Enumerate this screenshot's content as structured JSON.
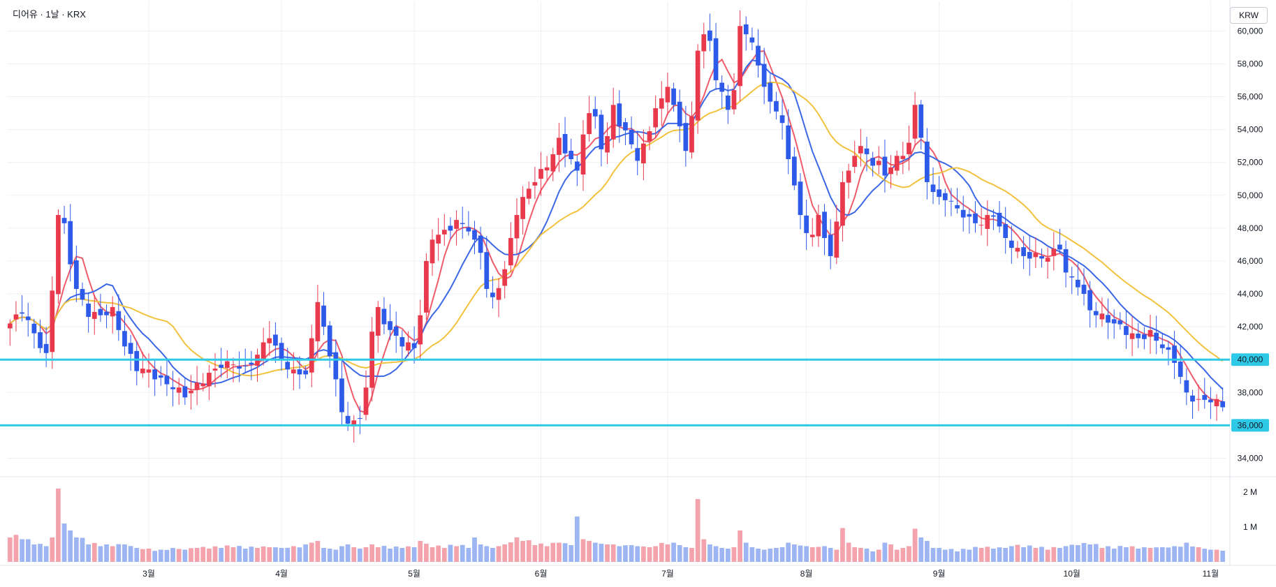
{
  "chart_data": {
    "type": "candlestick",
    "title": "디어유 · 1날 · KRX",
    "currency": "KRW",
    "price_ticks": [
      "34,000",
      "36,000",
      "38,000",
      "40,000",
      "42,000",
      "44,000",
      "46,000",
      "48,000",
      "50,000",
      "52,000",
      "54,000",
      "56,000",
      "58,000",
      "60,000"
    ],
    "price_tick_values": [
      34000,
      36000,
      38000,
      40000,
      42000,
      44000,
      46000,
      48000,
      50000,
      52000,
      54000,
      56000,
      58000,
      60000
    ],
    "ylim": [
      33000,
      61800
    ],
    "volume_ticks": [
      "1 M",
      "2 M"
    ],
    "volume_tick_values": [
      1000000,
      2000000
    ],
    "volume_ylim": [
      0,
      2300000
    ],
    "x_labels": [
      "3월",
      "4월",
      "5월",
      "6월",
      "7월",
      "8월",
      "9월",
      "10월",
      "11월"
    ],
    "x_label_index": [
      23,
      45,
      67,
      88,
      109,
      132,
      154,
      176,
      199
    ],
    "bars_total": 202,
    "horizontal_lines": [
      {
        "value": 40000,
        "label": "40,000",
        "color": "#2fc9e8"
      },
      {
        "value": 36000,
        "label": "36,000",
        "color": "#2fc9e8"
      }
    ],
    "colors": {
      "up": "#e8394d",
      "down": "#2d5ae8",
      "vol_up": "#f4a3ad",
      "vol_down": "#9db5f2",
      "ma_short": "#ef5b6a",
      "ma_mid": "#3c67e6",
      "ma_long": "#f2c23e"
    },
    "anchors": [
      [
        0,
        42200,
        700000
      ],
      [
        2,
        42800,
        650000
      ],
      [
        4,
        41600,
        500000
      ],
      [
        6,
        40400,
        450000
      ],
      [
        7,
        44200,
        700000
      ],
      [
        8,
        48800,
        2100000
      ],
      [
        9,
        48300,
        1100000
      ],
      [
        10,
        45800,
        900000
      ],
      [
        11,
        44300,
        700000
      ],
      [
        13,
        42600,
        500000
      ],
      [
        15,
        42700,
        450000
      ],
      [
        17,
        43200,
        450000
      ],
      [
        19,
        40800,
        500000
      ],
      [
        21,
        39300,
        400000
      ],
      [
        23,
        39400,
        380000
      ],
      [
        25,
        38900,
        350000
      ],
      [
        27,
        38200,
        400000
      ],
      [
        29,
        37700,
        350000
      ],
      [
        31,
        38600,
        400000
      ],
      [
        33,
        39200,
        380000
      ],
      [
        35,
        39500,
        400000
      ],
      [
        37,
        39700,
        420000
      ],
      [
        39,
        39600,
        380000
      ],
      [
        41,
        40300,
        400000
      ],
      [
        43,
        41300,
        420000
      ],
      [
        45,
        40000,
        400000
      ],
      [
        47,
        39400,
        450000
      ],
      [
        49,
        39100,
        500000
      ],
      [
        50,
        41300,
        550000
      ],
      [
        51,
        43500,
        600000
      ],
      [
        52,
        42000,
        400000
      ],
      [
        53,
        40200,
        380000
      ],
      [
        54,
        38800,
        350000
      ],
      [
        55,
        36800,
        450000
      ],
      [
        56,
        36100,
        500000
      ],
      [
        57,
        36300,
        420000
      ],
      [
        58,
        36400,
        380000
      ],
      [
        59,
        38300,
        420000
      ],
      [
        60,
        41700,
        500000
      ],
      [
        61,
        43200,
        420000
      ],
      [
        63,
        41800,
        380000
      ],
      [
        65,
        40800,
        400000
      ],
      [
        67,
        40700,
        420000
      ],
      [
        68,
        42700,
        600000
      ],
      [
        69,
        46000,
        520000
      ],
      [
        70,
        47300,
        420000
      ],
      [
        72,
        47900,
        400000
      ],
      [
        74,
        48500,
        450000
      ],
      [
        76,
        47800,
        400000
      ],
      [
        77,
        47300,
        700000
      ],
      [
        78,
        46500,
        500000
      ],
      [
        79,
        44300,
        450000
      ],
      [
        80,
        43800,
        400000
      ],
      [
        82,
        45500,
        500000
      ],
      [
        84,
        48800,
        700000
      ],
      [
        85,
        49900,
        600000
      ],
      [
        87,
        50800,
        480000
      ],
      [
        89,
        51700,
        450000
      ],
      [
        91,
        53500,
        550000
      ],
      [
        93,
        52200,
        480000
      ],
      [
        94,
        51500,
        1300000
      ],
      [
        95,
        53700,
        650000
      ],
      [
        96,
        55000,
        600000
      ],
      [
        97,
        54800,
        550000
      ],
      [
        98,
        52800,
        520000
      ],
      [
        99,
        53600,
        500000
      ],
      [
        100,
        55500,
        500000
      ],
      [
        101,
        54200,
        450000
      ],
      [
        103,
        53100,
        480000
      ],
      [
        104,
        52100,
        450000
      ],
      [
        106,
        53900,
        420000
      ],
      [
        107,
        55300,
        450000
      ],
      [
        109,
        56600,
        500000
      ],
      [
        110,
        55500,
        550000
      ],
      [
        111,
        54200,
        480000
      ],
      [
        112,
        52700,
        420000
      ],
      [
        113,
        54800,
        400000
      ],
      [
        114,
        58800,
        1800000
      ],
      [
        115,
        59800,
        650000
      ],
      [
        116,
        59400,
        500000
      ],
      [
        117,
        57000,
        450000
      ],
      [
        118,
        56300,
        400000
      ],
      [
        119,
        55200,
        380000
      ],
      [
        120,
        56400,
        420000
      ],
      [
        121,
        60300,
        900000
      ],
      [
        122,
        59800,
        550000
      ],
      [
        123,
        59300,
        420000
      ],
      [
        124,
        57900,
        380000
      ],
      [
        125,
        56600,
        350000
      ],
      [
        126,
        55700,
        380000
      ],
      [
        127,
        55100,
        400000
      ],
      [
        128,
        54400,
        420000
      ],
      [
        129,
        52200,
        550000
      ],
      [
        130,
        50600,
        500000
      ],
      [
        131,
        48800,
        470000
      ],
      [
        132,
        47700,
        450000
      ],
      [
        133,
        47600,
        420000
      ],
      [
        134,
        48800,
        430000
      ],
      [
        135,
        47400,
        450000
      ],
      [
        136,
        46300,
        400000
      ],
      [
        137,
        48400,
        350000
      ],
      [
        138,
        50800,
        970000
      ],
      [
        139,
        51500,
        550000
      ],
      [
        140,
        52400,
        420000
      ],
      [
        141,
        53000,
        400000
      ],
      [
        142,
        52500,
        380000
      ],
      [
        143,
        51800,
        300000
      ],
      [
        144,
        52100,
        350000
      ],
      [
        145,
        51200,
        550000
      ],
      [
        146,
        51700,
        500000
      ],
      [
        147,
        52400,
        350000
      ],
      [
        148,
        52400,
        400000
      ],
      [
        149,
        53200,
        450000
      ],
      [
        150,
        55500,
        950000
      ],
      [
        151,
        53500,
        700000
      ],
      [
        152,
        50800,
        600000
      ],
      [
        153,
        50200,
        400000
      ],
      [
        154,
        49900,
        400000
      ],
      [
        155,
        49700,
        350000
      ],
      [
        157,
        49200,
        300000
      ],
      [
        159,
        48700,
        350000
      ],
      [
        161,
        48200,
        400000
      ],
      [
        163,
        48700,
        380000
      ],
      [
        165,
        47400,
        400000
      ],
      [
        166,
        46800,
        450000
      ],
      [
        168,
        46300,
        420000
      ],
      [
        170,
        46500,
        400000
      ],
      [
        172,
        46200,
        350000
      ],
      [
        174,
        46700,
        400000
      ],
      [
        175,
        45300,
        450000
      ],
      [
        177,
        44400,
        480000
      ],
      [
        179,
        43000,
        500000
      ],
      [
        181,
        42800,
        400000
      ],
      [
        183,
        42200,
        380000
      ],
      [
        185,
        41500,
        420000
      ],
      [
        187,
        41300,
        380000
      ],
      [
        189,
        41800,
        400000
      ],
      [
        191,
        40700,
        420000
      ],
      [
        193,
        39800,
        450000
      ],
      [
        195,
        38000,
        550000
      ],
      [
        197,
        37600,
        420000
      ],
      [
        199,
        37400,
        350000
      ],
      [
        201,
        37100,
        320000
      ]
    ]
  }
}
